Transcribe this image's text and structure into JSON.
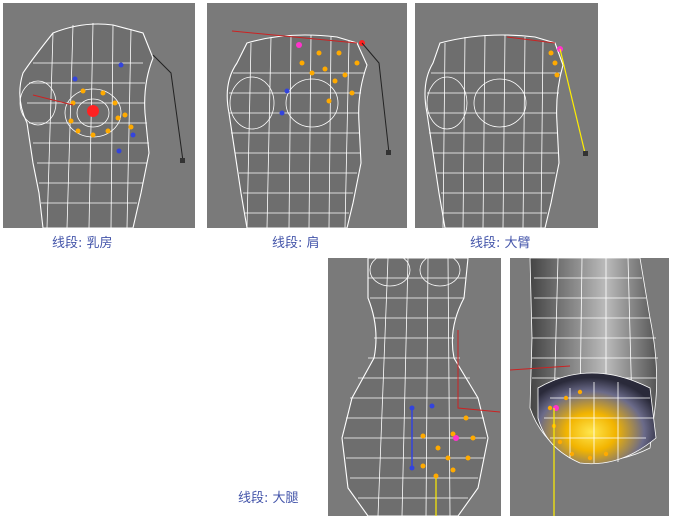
{
  "captions": {
    "breast": "线段: 乳房",
    "shoulder": "线段: 肩",
    "upper_arm": "线段: 大臂",
    "thigh": "线段: 大腿"
  },
  "colors": {
    "viewport_bg": "#7a7a7a",
    "wire": "#ffffff",
    "vertex_selected": "#ffaa00",
    "vertex_blue": "#3344dd",
    "bone_red": "#cc2222",
    "bone_yellow": "#ffee00",
    "caption": "#4455aa"
  }
}
